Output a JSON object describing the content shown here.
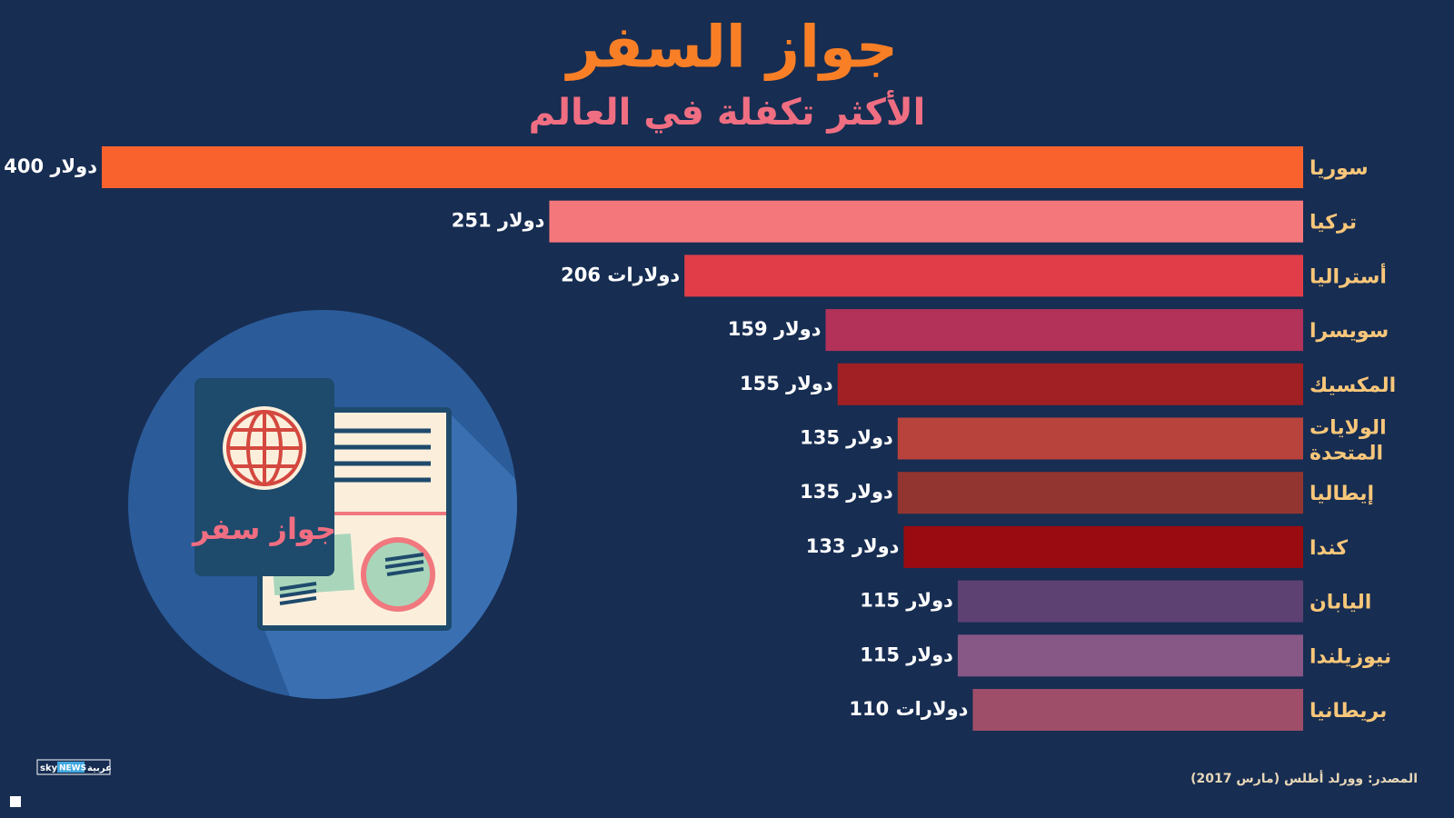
{
  "chart_data": {
    "type": "bar",
    "orientation": "horizontal",
    "title": "جواز السفر",
    "subtitle": "الأكثر تكفلة في العالم",
    "categories": [
      "سوريا",
      "تركيا",
      "أستراليا",
      "سويسرا",
      "المكسيك",
      "الولايات المتحدة",
      "إيطاليا",
      "كندا",
      "اليابان",
      "نيوزيلندا",
      "بريطانيا"
    ],
    "values": [
      400,
      251,
      206,
      159,
      155,
      135,
      135,
      133,
      115,
      115,
      110
    ],
    "value_labels": [
      "400 دولار",
      "251 دولار",
      "206 دولارات",
      "159 دولار",
      "155 دولار",
      "135 دولار",
      "135 دولار",
      "133 دولار",
      "115 دولار",
      "115 دولار",
      "110 دولارات"
    ],
    "colors": [
      "#f9622c",
      "#f4777b",
      "#e13d48",
      "#b3325a",
      "#a12024",
      "#b8433c",
      "#923530",
      "#990b10",
      "#5e4173",
      "#875785",
      "#9e4e68"
    ],
    "source": "المصدر: وورلد أطلس (مارس 2017)"
  },
  "illustration_label": "جواز سفر",
  "logo": {
    "sky": "sky",
    "news": "NEWS",
    "arabic": "عربية"
  }
}
